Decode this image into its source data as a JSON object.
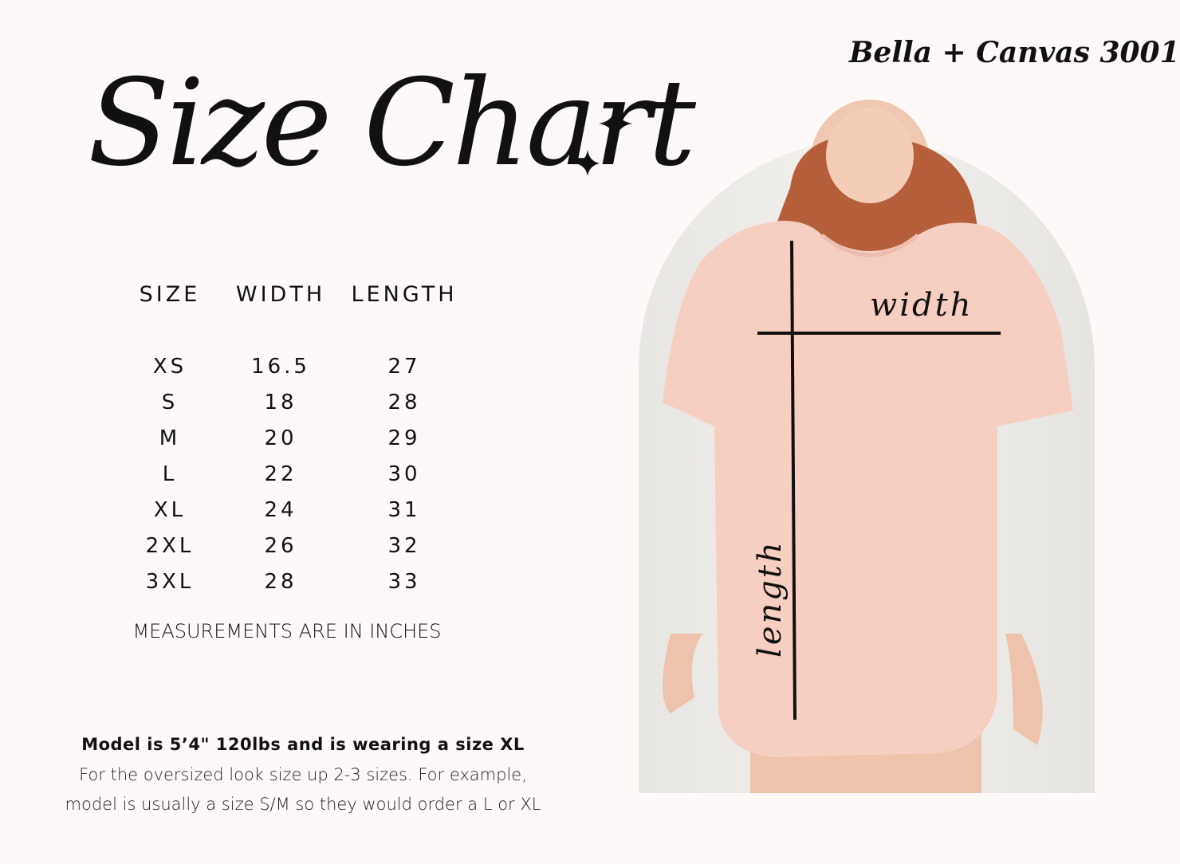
{
  "title": "Size Chart",
  "brand": "Bella + Canvas 3001",
  "table": {
    "headers": [
      "SIZE",
      "WIDTH",
      "LENGTH"
    ],
    "rows": [
      [
        "XS",
        "16.5",
        "27"
      ],
      [
        "S",
        "18",
        "28"
      ],
      [
        "M",
        "20",
        "29"
      ],
      [
        "L",
        "22",
        "30"
      ],
      [
        "XL",
        "24",
        "31"
      ],
      [
        "2XL",
        "26",
        "32"
      ],
      [
        "3XL",
        "28",
        "33"
      ]
    ]
  },
  "measurement_note": "MEASUREMENTS ARE IN INCHES",
  "model_info": "Model is 5’4\" 120lbs and is wearing a size XL",
  "fit_note_line1": "For the oversized look size up 2-3 sizes. For example,",
  "fit_note_line2": "model is usually a size S/M so they would order a L or XL",
  "photo": {
    "width_label": "width",
    "length_label": "length",
    "shirt_color": "#f6cfc2"
  },
  "icons": [
    "sparkle-icon-large",
    "sparkle-icon-small"
  ]
}
